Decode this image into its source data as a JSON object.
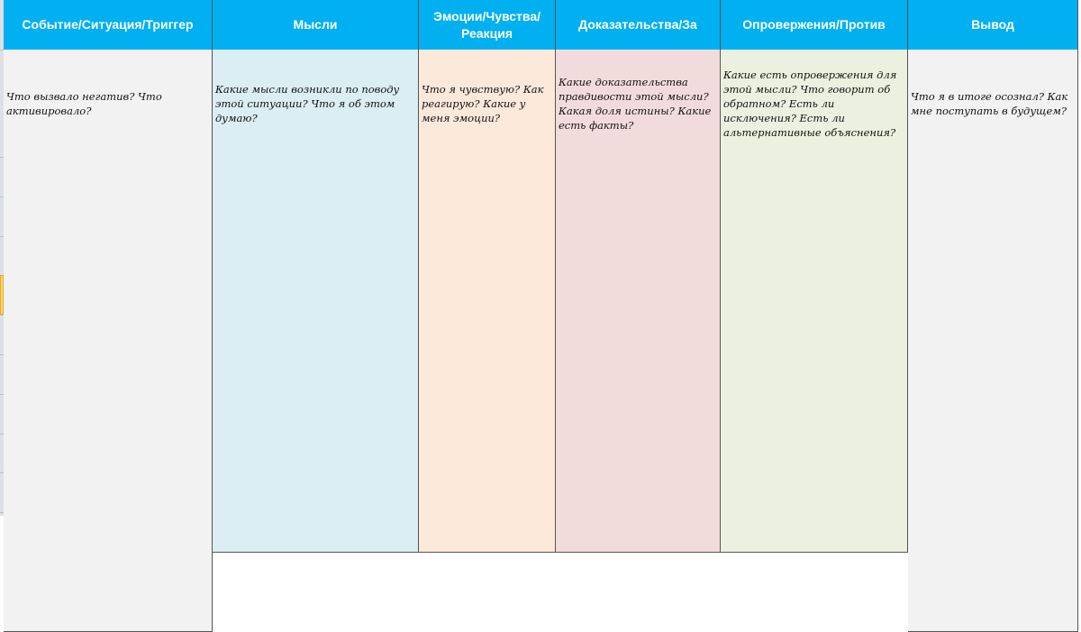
{
  "columns": [
    {
      "header": "Событие/Ситуация/Триггер",
      "description": "Что вызвало негатив? Что активировало?",
      "color": "#F2F2F2"
    },
    {
      "header": "Мысли",
      "description": "Какие мысли возникли по поводу этой ситуации? Что я об этом думаю?",
      "color": "#DAEEF3"
    },
    {
      "header": "Эмоции/Чувства/ Реакция",
      "description": "Что я чувствую? Как реагирую? Какие у меня эмоции?",
      "color": "#FDE9D9"
    },
    {
      "header": "Доказательства/За",
      "description": "Какие доказательства правдивости этой мысли? Какая доля истины? Какие есть факты?",
      "color": "#F2DCDB"
    },
    {
      "header": "Опровержения/Против",
      "description": "Какие есть опровержения для этой мысли? Что говорит об обратном? Есть ли исключения? Есть ли альтернативные объяснения?",
      "color": "#EBF1DE"
    },
    {
      "header": "Вывод",
      "description": "Что я в итоге осознал? Как мне поступать в будущем?",
      "color": "#F2F2F2"
    }
  ],
  "header_color": "#00B0F0",
  "selected_row_color": "#FFD966"
}
